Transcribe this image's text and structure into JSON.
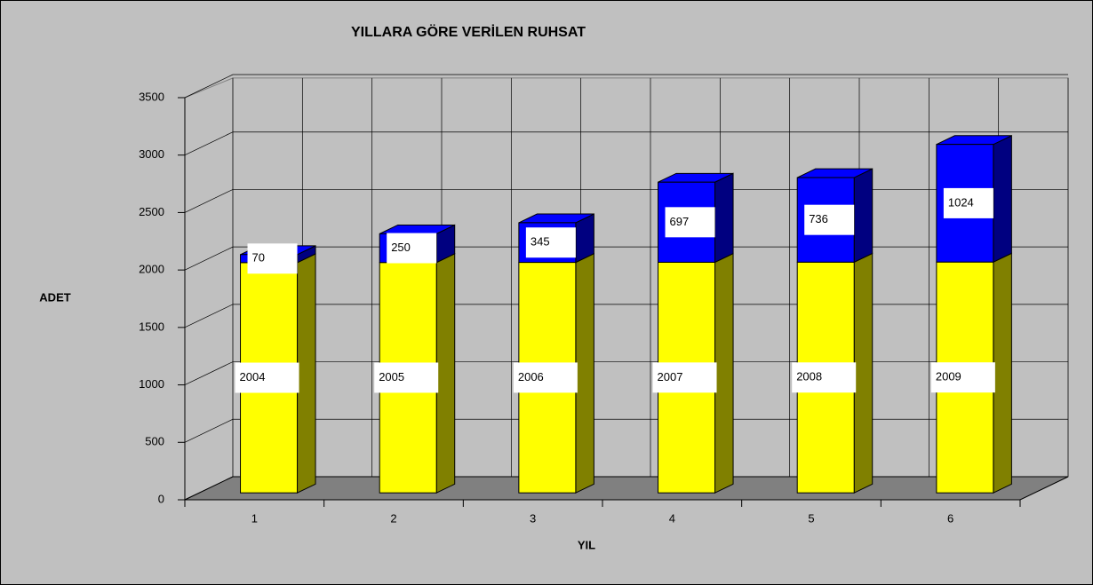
{
  "chart_data": {
    "type": "bar",
    "stacked": true,
    "title": "YILLARA GÖRE VERİLEN RUHSAT",
    "xlabel": "YIL",
    "ylabel": "ADET",
    "categories": [
      "1",
      "2",
      "3",
      "4",
      "5",
      "6"
    ],
    "series": [
      {
        "color": "#ffff00",
        "side_color": "#808000",
        "values": [
          2004,
          2005,
          2006,
          2007,
          2008,
          2009
        ]
      },
      {
        "color": "#0000ff",
        "side_color": "#000080",
        "values": [
          70,
          250,
          345,
          697,
          736,
          1024
        ]
      }
    ],
    "ylim": [
      0,
      3500
    ],
    "yticks": [
      0,
      500,
      1000,
      1500,
      2000,
      2500,
      3000,
      3500
    ],
    "grid": true
  }
}
